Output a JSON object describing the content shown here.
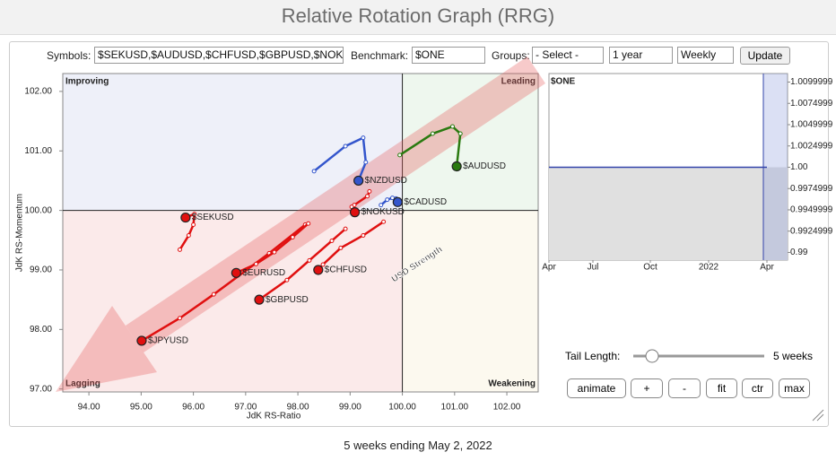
{
  "header": {
    "title": "Relative Rotation Graph (RRG)"
  },
  "form": {
    "symbols_label": "Symbols:",
    "symbols": "$SEKUSD,$AUDUSD,$CHFUSD,$GBPUSD,$NOK",
    "benchmark_label": "Benchmark:",
    "benchmark": "$ONE",
    "groups_label": "Groups:",
    "groups": "- Select -",
    "period": "1 year",
    "frequency": "Weekly",
    "update": "Update"
  },
  "chart_data": [
    {
      "type": "scatter",
      "xlabel": "JdK RS-Ratio",
      "ylabel": "JdK RS-Momentum",
      "xlim": [
        93.5,
        102.6
      ],
      "ylim": [
        96.95,
        102.3
      ],
      "center": [
        100,
        100
      ],
      "xticks": [
        {
          "value": 94,
          "label": "94.00"
        },
        {
          "value": 95,
          "label": "95.00"
        },
        {
          "value": 96,
          "label": "96.00"
        },
        {
          "value": 97,
          "label": "97.00"
        },
        {
          "value": 98,
          "label": "98.00"
        },
        {
          "value": 99,
          "label": "99.00"
        },
        {
          "value": 100,
          "label": "100.00"
        },
        {
          "value": 101,
          "label": "101.00"
        },
        {
          "value": 102,
          "label": "102.00"
        }
      ],
      "yticks": [
        {
          "value": 97,
          "label": "97.00"
        },
        {
          "value": 98,
          "label": "98.00"
        },
        {
          "value": 99,
          "label": "99.00"
        },
        {
          "value": 100,
          "label": "100.00"
        },
        {
          "value": 101,
          "label": "101.00"
        },
        {
          "value": 102,
          "label": "102.00"
        }
      ],
      "quadrants": {
        "improving": "Improving",
        "leading": "Leading",
        "lagging": "Lagging",
        "weakening": "Weakening"
      },
      "annotation": "USD Strength",
      "series": [
        {
          "name": "$JPYUSD",
          "color": "#e01010",
          "x": [
            98.14,
            97.45,
            96.39,
            95.74,
            95.01
          ],
          "values": [
            99.76,
            99.28,
            98.59,
            98.19,
            97.81
          ]
        },
        {
          "name": "$EURUSD",
          "color": "#e01010",
          "x": [
            98.2,
            97.9,
            97.55,
            97.2,
            96.82
          ],
          "values": [
            99.78,
            99.55,
            99.3,
            99.1,
            98.95
          ]
        },
        {
          "name": "$GBPUSD",
          "color": "#e01010",
          "x": [
            98.91,
            98.65,
            98.22,
            97.79,
            97.26
          ],
          "values": [
            99.69,
            99.49,
            99.16,
            98.83,
            98.5
          ]
        },
        {
          "name": "$CHFUSD",
          "color": "#e01010",
          "x": [
            99.64,
            99.25,
            98.82,
            98.48,
            98.39
          ],
          "values": [
            99.81,
            99.58,
            99.37,
            99.09,
            99.0
          ]
        },
        {
          "name": "$SEKUSD",
          "color": "#e01010",
          "x": [
            95.74,
            95.91,
            96.0,
            96.02,
            95.85
          ],
          "values": [
            99.34,
            99.58,
            99.76,
            99.94,
            99.88
          ]
        },
        {
          "name": "$NOKUSD",
          "color": "#e01010",
          "x": [
            99.37,
            99.33,
            99.08,
            99.03,
            99.09
          ],
          "values": [
            100.32,
            100.24,
            100.09,
            100.06,
            99.97
          ]
        },
        {
          "name": "$CADUSD",
          "color": "#3355cc",
          "x": [
            99.59,
            99.71,
            99.81,
            99.88,
            99.91
          ],
          "values": [
            100.09,
            100.18,
            100.21,
            100.2,
            100.14
          ]
        },
        {
          "name": "$NZDUSD",
          "color": "#3355cc",
          "x": [
            98.31,
            98.91,
            99.25,
            99.3,
            99.16
          ],
          "values": [
            100.66,
            101.08,
            101.22,
            100.81,
            100.5
          ]
        },
        {
          "name": "$AUDUSD",
          "color": "#2a7a10",
          "x": [
            99.95,
            100.58,
            100.96,
            101.11,
            101.04
          ],
          "values": [
            100.93,
            101.29,
            101.41,
            101.29,
            100.74
          ]
        }
      ]
    },
    {
      "type": "line",
      "title": "$ONE",
      "categories": [
        "Apr",
        "Jul",
        "Oct",
        "2022",
        "Apr"
      ],
      "values": [
        1,
        1,
        1,
        1,
        1
      ],
      "color": "#3344aa",
      "ylim": [
        0.9891,
        1.011
      ],
      "yticks": [
        1.0099999,
        1.0074999,
        1.0049999,
        1.0024999,
        {
          "value": 1,
          "label": "1.00"
        },
        0.9974999,
        0.9949999,
        0.9924999,
        0.99
      ]
    }
  ],
  "controls": {
    "tail_label": "Tail Length:",
    "tail_value": "5 weeks",
    "buttons": [
      "animate",
      "+",
      "-",
      "fit",
      "ctr",
      "max"
    ]
  },
  "footer": "5 weeks ending May 2, 2022"
}
